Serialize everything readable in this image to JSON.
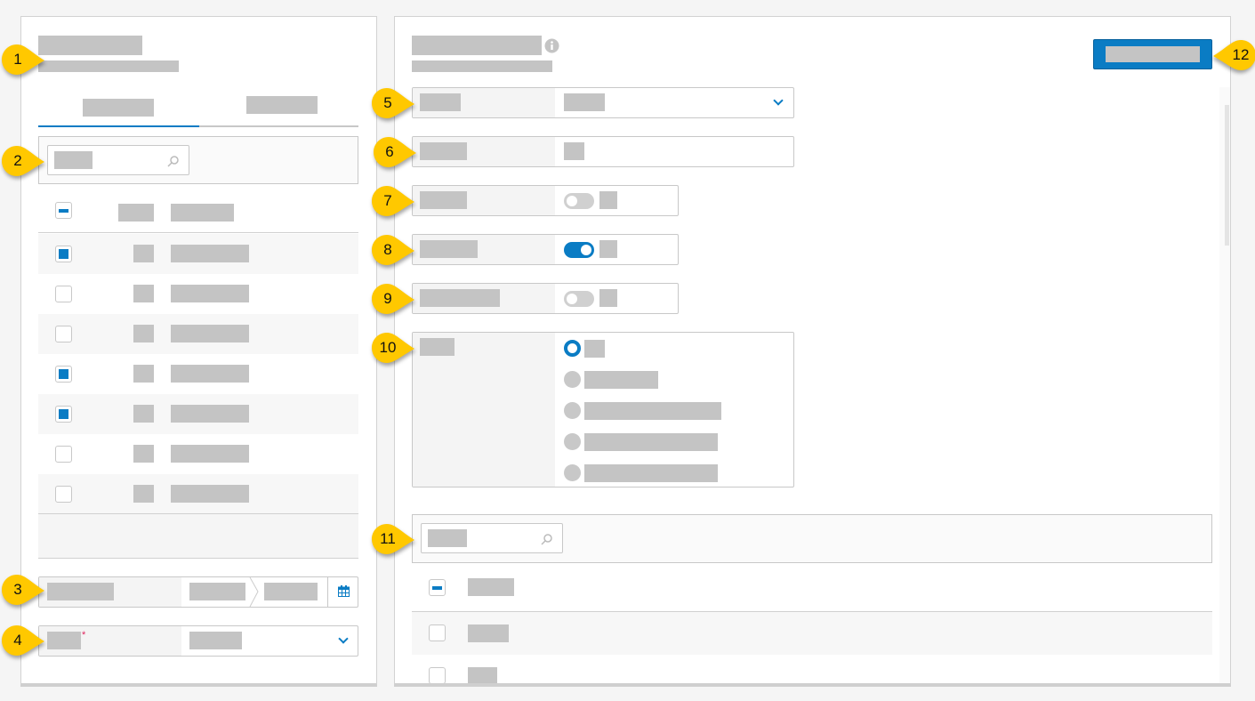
{
  "colors": {
    "accent": "#0a7cc4",
    "callout": "#ffc800",
    "placeholder": "#c4c4c4",
    "required": "#e0245e"
  },
  "callouts": [
    "1",
    "2",
    "3",
    "4",
    "5",
    "6",
    "7",
    "8",
    "9",
    "10",
    "11",
    "12"
  ],
  "left_panel": {
    "active_tab_index": 0,
    "header_checkbox": "indeterminate",
    "rows_checked": [
      true,
      false,
      false,
      true,
      true,
      false,
      false
    ],
    "required_marker": "*"
  },
  "right_panel": {
    "toggles": [
      false,
      true,
      false
    ],
    "radio_selected_index": 0,
    "radio_count": 5,
    "header_checkbox": "indeterminate",
    "rows_checked": [
      false,
      false
    ]
  },
  "icons": [
    "info-icon",
    "search-icon",
    "calendar-icon",
    "chevron-down-icon"
  ]
}
